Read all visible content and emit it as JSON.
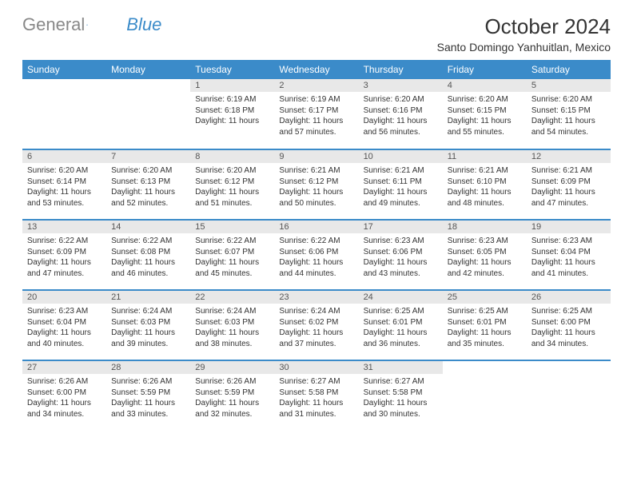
{
  "brand": {
    "name1": "General",
    "name2": "Blue"
  },
  "title": "October 2024",
  "location": "Santo Domingo Yanhuitlan, Mexico",
  "colors": {
    "header_bg": "#3b8bc9",
    "header_text": "#ffffff",
    "daynum_bg": "#e8e8e8",
    "border": "#3b8bc9",
    "logo_gray": "#888888",
    "logo_blue": "#3b8bc9"
  },
  "day_headers": [
    "Sunday",
    "Monday",
    "Tuesday",
    "Wednesday",
    "Thursday",
    "Friday",
    "Saturday"
  ],
  "weeks": [
    [
      null,
      null,
      {
        "n": "1",
        "sr": "Sunrise: 6:19 AM",
        "ss": "Sunset: 6:18 PM",
        "dl": "Daylight: 11 hours"
      },
      {
        "n": "2",
        "sr": "Sunrise: 6:19 AM",
        "ss": "Sunset: 6:17 PM",
        "dl": "Daylight: 11 hours and 57 minutes."
      },
      {
        "n": "3",
        "sr": "Sunrise: 6:20 AM",
        "ss": "Sunset: 6:16 PM",
        "dl": "Daylight: 11 hours and 56 minutes."
      },
      {
        "n": "4",
        "sr": "Sunrise: 6:20 AM",
        "ss": "Sunset: 6:15 PM",
        "dl": "Daylight: 11 hours and 55 minutes."
      },
      {
        "n": "5",
        "sr": "Sunrise: 6:20 AM",
        "ss": "Sunset: 6:15 PM",
        "dl": "Daylight: 11 hours and 54 minutes."
      }
    ],
    [
      {
        "n": "6",
        "sr": "Sunrise: 6:20 AM",
        "ss": "Sunset: 6:14 PM",
        "dl": "Daylight: 11 hours and 53 minutes."
      },
      {
        "n": "7",
        "sr": "Sunrise: 6:20 AM",
        "ss": "Sunset: 6:13 PM",
        "dl": "Daylight: 11 hours and 52 minutes."
      },
      {
        "n": "8",
        "sr": "Sunrise: 6:20 AM",
        "ss": "Sunset: 6:12 PM",
        "dl": "Daylight: 11 hours and 51 minutes."
      },
      {
        "n": "9",
        "sr": "Sunrise: 6:21 AM",
        "ss": "Sunset: 6:12 PM",
        "dl": "Daylight: 11 hours and 50 minutes."
      },
      {
        "n": "10",
        "sr": "Sunrise: 6:21 AM",
        "ss": "Sunset: 6:11 PM",
        "dl": "Daylight: 11 hours and 49 minutes."
      },
      {
        "n": "11",
        "sr": "Sunrise: 6:21 AM",
        "ss": "Sunset: 6:10 PM",
        "dl": "Daylight: 11 hours and 48 minutes."
      },
      {
        "n": "12",
        "sr": "Sunrise: 6:21 AM",
        "ss": "Sunset: 6:09 PM",
        "dl": "Daylight: 11 hours and 47 minutes."
      }
    ],
    [
      {
        "n": "13",
        "sr": "Sunrise: 6:22 AM",
        "ss": "Sunset: 6:09 PM",
        "dl": "Daylight: 11 hours and 47 minutes."
      },
      {
        "n": "14",
        "sr": "Sunrise: 6:22 AM",
        "ss": "Sunset: 6:08 PM",
        "dl": "Daylight: 11 hours and 46 minutes."
      },
      {
        "n": "15",
        "sr": "Sunrise: 6:22 AM",
        "ss": "Sunset: 6:07 PM",
        "dl": "Daylight: 11 hours and 45 minutes."
      },
      {
        "n": "16",
        "sr": "Sunrise: 6:22 AM",
        "ss": "Sunset: 6:06 PM",
        "dl": "Daylight: 11 hours and 44 minutes."
      },
      {
        "n": "17",
        "sr": "Sunrise: 6:23 AM",
        "ss": "Sunset: 6:06 PM",
        "dl": "Daylight: 11 hours and 43 minutes."
      },
      {
        "n": "18",
        "sr": "Sunrise: 6:23 AM",
        "ss": "Sunset: 6:05 PM",
        "dl": "Daylight: 11 hours and 42 minutes."
      },
      {
        "n": "19",
        "sr": "Sunrise: 6:23 AM",
        "ss": "Sunset: 6:04 PM",
        "dl": "Daylight: 11 hours and 41 minutes."
      }
    ],
    [
      {
        "n": "20",
        "sr": "Sunrise: 6:23 AM",
        "ss": "Sunset: 6:04 PM",
        "dl": "Daylight: 11 hours and 40 minutes."
      },
      {
        "n": "21",
        "sr": "Sunrise: 6:24 AM",
        "ss": "Sunset: 6:03 PM",
        "dl": "Daylight: 11 hours and 39 minutes."
      },
      {
        "n": "22",
        "sr": "Sunrise: 6:24 AM",
        "ss": "Sunset: 6:03 PM",
        "dl": "Daylight: 11 hours and 38 minutes."
      },
      {
        "n": "23",
        "sr": "Sunrise: 6:24 AM",
        "ss": "Sunset: 6:02 PM",
        "dl": "Daylight: 11 hours and 37 minutes."
      },
      {
        "n": "24",
        "sr": "Sunrise: 6:25 AM",
        "ss": "Sunset: 6:01 PM",
        "dl": "Daylight: 11 hours and 36 minutes."
      },
      {
        "n": "25",
        "sr": "Sunrise: 6:25 AM",
        "ss": "Sunset: 6:01 PM",
        "dl": "Daylight: 11 hours and 35 minutes."
      },
      {
        "n": "26",
        "sr": "Sunrise: 6:25 AM",
        "ss": "Sunset: 6:00 PM",
        "dl": "Daylight: 11 hours and 34 minutes."
      }
    ],
    [
      {
        "n": "27",
        "sr": "Sunrise: 6:26 AM",
        "ss": "Sunset: 6:00 PM",
        "dl": "Daylight: 11 hours and 34 minutes."
      },
      {
        "n": "28",
        "sr": "Sunrise: 6:26 AM",
        "ss": "Sunset: 5:59 PM",
        "dl": "Daylight: 11 hours and 33 minutes."
      },
      {
        "n": "29",
        "sr": "Sunrise: 6:26 AM",
        "ss": "Sunset: 5:59 PM",
        "dl": "Daylight: 11 hours and 32 minutes."
      },
      {
        "n": "30",
        "sr": "Sunrise: 6:27 AM",
        "ss": "Sunset: 5:58 PM",
        "dl": "Daylight: 11 hours and 31 minutes."
      },
      {
        "n": "31",
        "sr": "Sunrise: 6:27 AM",
        "ss": "Sunset: 5:58 PM",
        "dl": "Daylight: 11 hours and 30 minutes."
      },
      null,
      null
    ]
  ]
}
